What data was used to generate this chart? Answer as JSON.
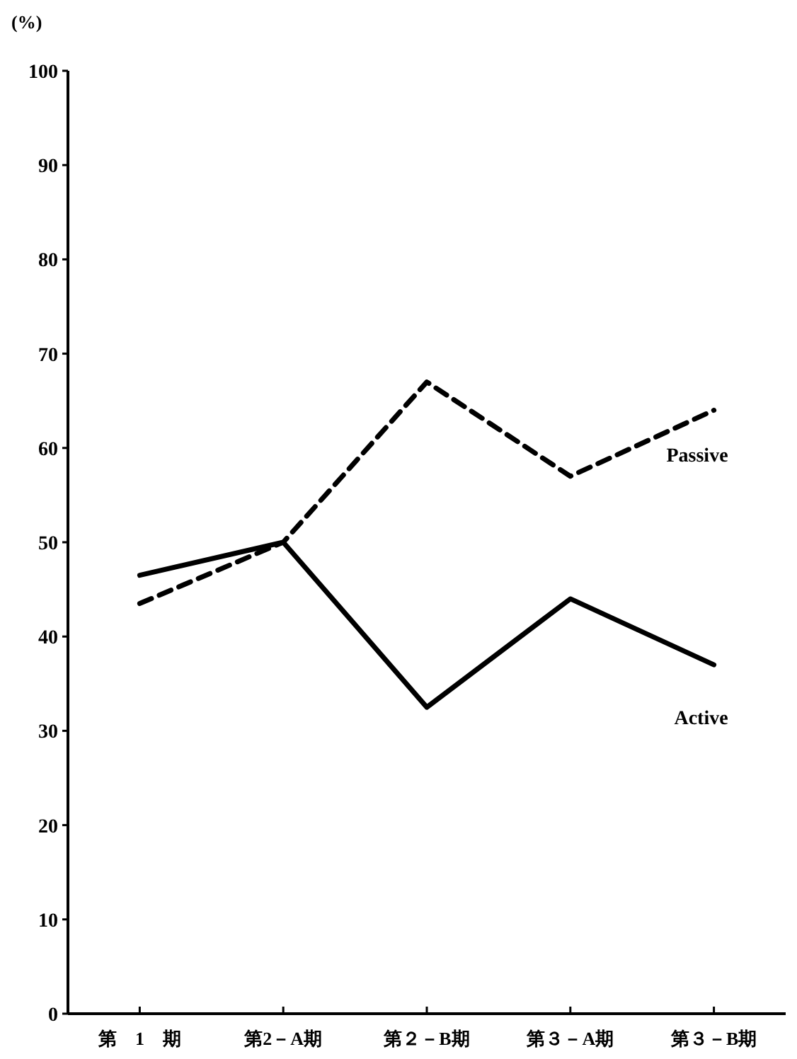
{
  "chart_data": {
    "type": "line",
    "ylabel": "(%)",
    "categories": [
      "第　1　期",
      "第2－A期",
      "第２－B期",
      "第３－A期",
      "第３－B期"
    ],
    "ylim": [
      0,
      100
    ],
    "yticks": [
      0,
      10,
      20,
      30,
      40,
      50,
      60,
      70,
      80,
      90,
      100
    ],
    "grid": false,
    "legend": false,
    "marker": "none",
    "series": [
      {
        "name": "Active",
        "color": "#000000",
        "line_style": "solid",
        "values": [
          46.5,
          50,
          32.5,
          44,
          37
        ]
      },
      {
        "name": "Passive",
        "color": "#000000",
        "line_style": "dashed",
        "values": [
          43.5,
          50,
          67,
          57,
          64
        ]
      }
    ]
  }
}
